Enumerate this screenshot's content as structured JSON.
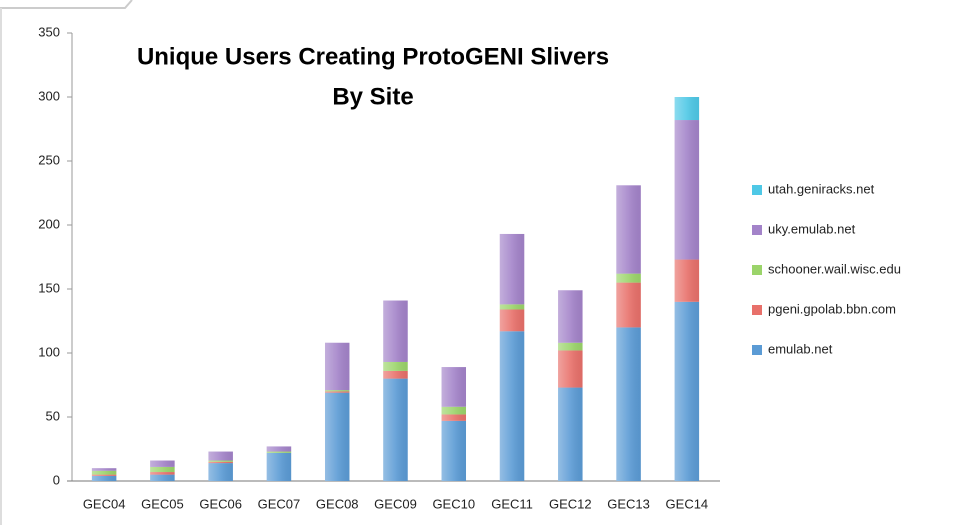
{
  "chart_data": {
    "type": "stacked_bar",
    "title": [
      "Unique Users Creating ProtoGENI Slivers",
      "By Site"
    ],
    "categories": [
      "GEC04",
      "GEC05",
      "GEC06",
      "GEC07",
      "GEC08",
      "GEC09",
      "GEC10",
      "GEC11",
      "GEC12",
      "GEC13",
      "GEC14"
    ],
    "series": [
      {
        "name": "emulab.net",
        "color": "#5b9bd5",
        "values": [
          4,
          5,
          14,
          22,
          69,
          80,
          47,
          117,
          73,
          120,
          140
        ]
      },
      {
        "name": "pgeni.gpolab.bbn.com",
        "color": "#e8706a",
        "values": [
          1,
          2,
          1,
          0,
          1,
          6,
          5,
          17,
          29,
          35,
          33
        ]
      },
      {
        "name": "schooner.wail.wisc.edu",
        "color": "#9bd46a",
        "values": [
          3,
          4,
          1,
          1,
          1,
          7,
          6,
          4,
          6,
          7,
          0
        ]
      },
      {
        "name": "uky.emulab.net",
        "color": "#a383c9",
        "values": [
          2,
          5,
          7,
          4,
          37,
          48,
          31,
          55,
          41,
          69,
          109
        ]
      },
      {
        "name": "utah.geniracks.net",
        "color": "#4ec8e6",
        "values": [
          0,
          0,
          0,
          0,
          0,
          0,
          0,
          0,
          0,
          0,
          18
        ]
      }
    ],
    "ylim": [
      0,
      350
    ],
    "yticks": [
      0,
      50,
      100,
      150,
      200,
      250,
      300,
      350
    ],
    "grid": false,
    "legend": "right"
  }
}
